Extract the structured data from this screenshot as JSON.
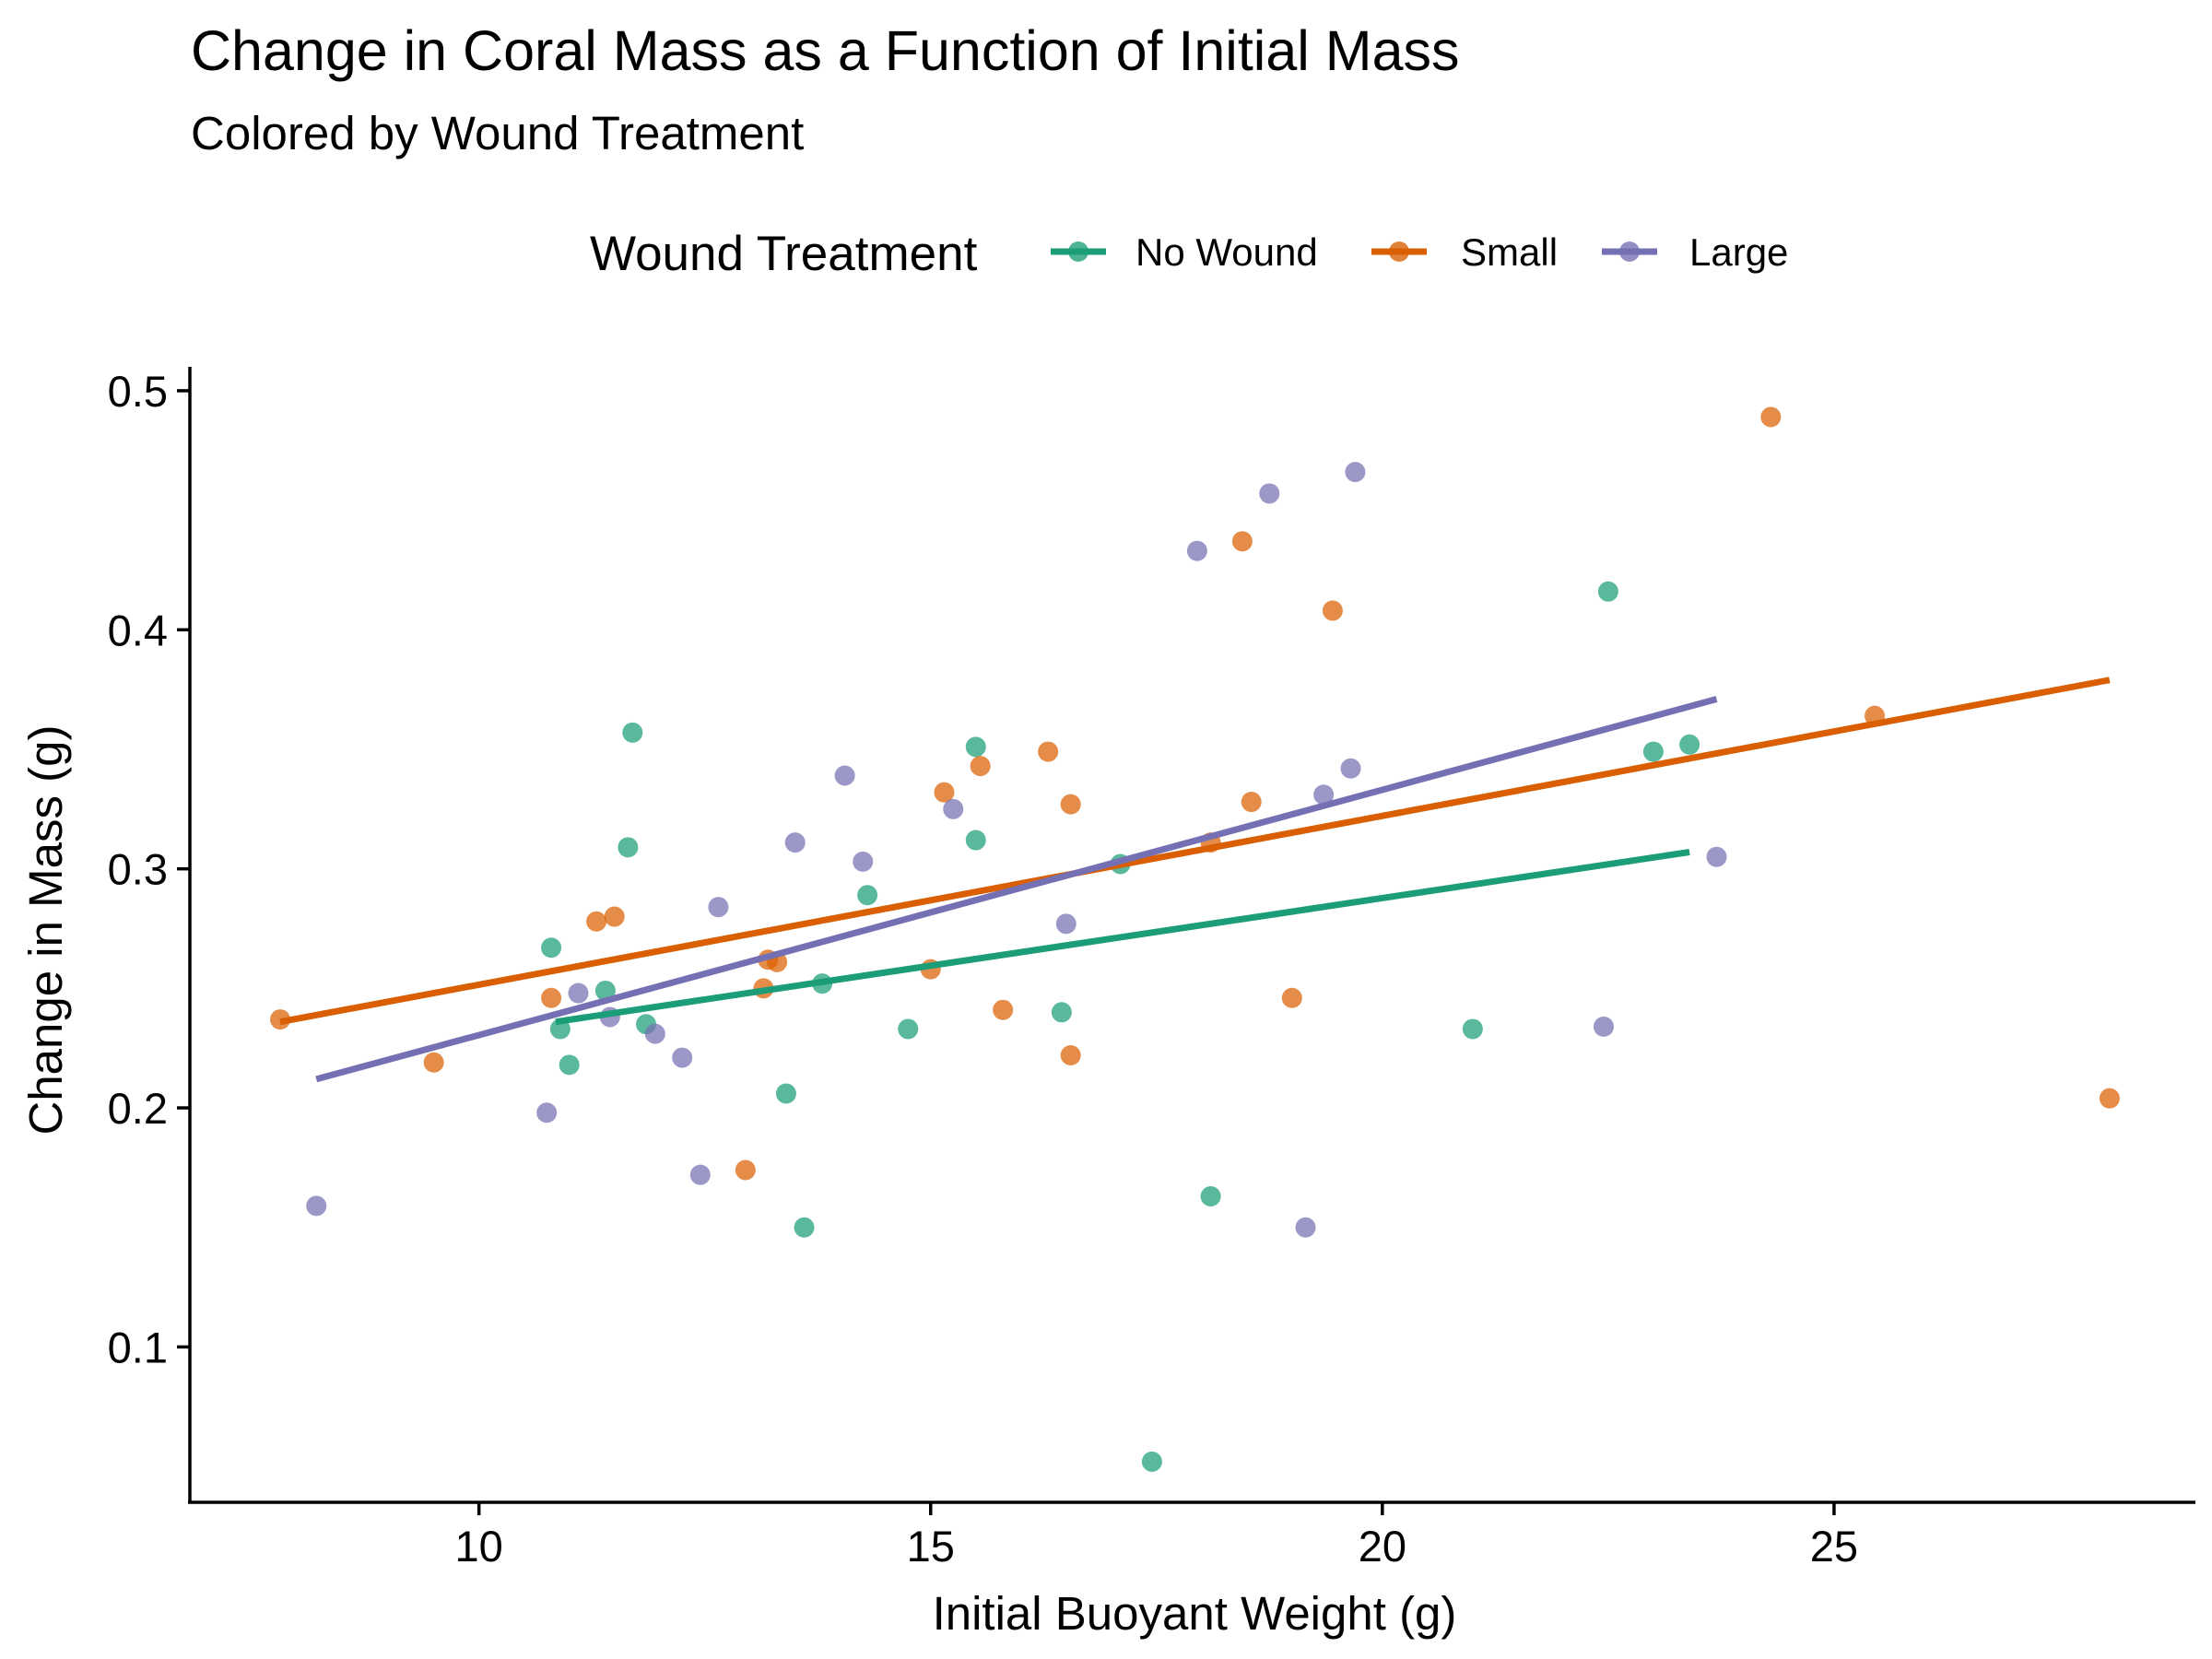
{
  "chart_data": {
    "type": "scatter",
    "title": "Change in Coral Mass as a Function of Initial Mass",
    "subtitle": "Colored by Wound Treatment",
    "xlabel": "Initial Buoyant Weight (g)",
    "ylabel": "Change in Mass (g)",
    "xlim": [
      6.8,
      29.0
    ],
    "ylim": [
      0.035,
      0.51
    ],
    "x_ticks": [
      10,
      15,
      20,
      25
    ],
    "x_tick_labels": [
      "10",
      "15",
      "20",
      "25"
    ],
    "y_ticks": [
      0.1,
      0.2,
      0.3,
      0.4,
      0.5
    ],
    "y_tick_labels": [
      "0.1",
      "0.2",
      "0.3",
      "0.4",
      "0.5"
    ],
    "grid": false,
    "legend": {
      "title": "Wound Treatment",
      "placement": "top",
      "entries": [
        "No Wound",
        "Small",
        "Large"
      ]
    },
    "series": [
      {
        "name": "No Wound",
        "color": "#1B9E77",
        "points": [
          [
            10.8,
            0.267
          ],
          [
            10.9,
            0.233
          ],
          [
            11.0,
            0.218
          ],
          [
            11.4,
            0.249
          ],
          [
            11.65,
            0.309
          ],
          [
            11.7,
            0.357
          ],
          [
            11.85,
            0.235
          ],
          [
            13.4,
            0.206
          ],
          [
            13.6,
            0.15
          ],
          [
            13.8,
            0.252
          ],
          [
            14.3,
            0.289
          ],
          [
            14.75,
            0.233
          ],
          [
            15.5,
            0.351
          ],
          [
            15.5,
            0.312
          ],
          [
            16.45,
            0.24
          ],
          [
            17.1,
            0.302
          ],
          [
            17.45,
            0.052
          ],
          [
            18.1,
            0.163
          ],
          [
            21.0,
            0.233
          ],
          [
            22.5,
            0.416
          ],
          [
            23.0,
            0.349
          ],
          [
            23.4,
            0.352
          ]
        ],
        "trend": {
          "x": [
            10.85,
            23.4
          ],
          "y": [
            0.236,
            0.307
          ]
        }
      },
      {
        "name": "Small",
        "color": "#D95F02",
        "points": [
          [
            7.8,
            0.237
          ],
          [
            9.5,
            0.219
          ],
          [
            10.8,
            0.246
          ],
          [
            11.3,
            0.278
          ],
          [
            11.5,
            0.28
          ],
          [
            12.95,
            0.174
          ],
          [
            13.15,
            0.25
          ],
          [
            13.2,
            0.262
          ],
          [
            13.3,
            0.261
          ],
          [
            15.0,
            0.258
          ],
          [
            15.15,
            0.332
          ],
          [
            15.55,
            0.343
          ],
          [
            15.8,
            0.241
          ],
          [
            16.3,
            0.349
          ],
          [
            16.55,
            0.327
          ],
          [
            16.55,
            0.222
          ],
          [
            18.1,
            0.311
          ],
          [
            18.45,
            0.437
          ],
          [
            18.55,
            0.328
          ],
          [
            19.0,
            0.246
          ],
          [
            19.45,
            0.408
          ],
          [
            24.3,
            0.489
          ],
          [
            25.45,
            0.364
          ],
          [
            28.05,
            0.204
          ]
        ],
        "trend": {
          "x": [
            7.8,
            28.05
          ],
          "y": [
            0.236,
            0.379
          ]
        }
      },
      {
        "name": "Large",
        "color": "#7570B3",
        "points": [
          [
            8.2,
            0.159
          ],
          [
            10.75,
            0.198
          ],
          [
            11.1,
            0.248
          ],
          [
            11.45,
            0.238
          ],
          [
            11.95,
            0.231
          ],
          [
            12.25,
            0.221
          ],
          [
            12.45,
            0.172
          ],
          [
            12.65,
            0.284
          ],
          [
            13.5,
            0.311
          ],
          [
            14.05,
            0.339
          ],
          [
            14.25,
            0.303
          ],
          [
            15.25,
            0.325
          ],
          [
            16.5,
            0.277
          ],
          [
            17.95,
            0.433
          ],
          [
            18.75,
            0.457
          ],
          [
            19.15,
            0.15
          ],
          [
            19.35,
            0.331
          ],
          [
            19.65,
            0.342
          ],
          [
            19.7,
            0.466
          ],
          [
            22.45,
            0.234
          ],
          [
            23.7,
            0.305
          ]
        ],
        "trend": {
          "x": [
            8.2,
            23.7
          ],
          "y": [
            0.212,
            0.371
          ]
        }
      }
    ]
  }
}
